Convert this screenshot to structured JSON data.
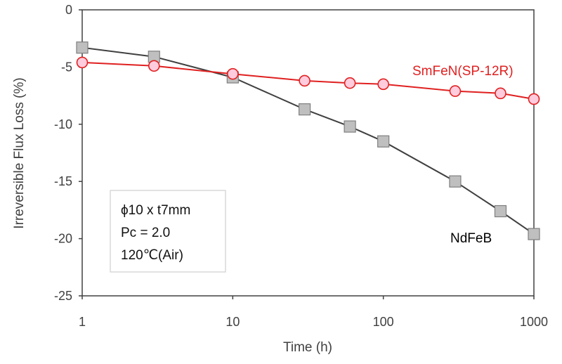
{
  "chart_data": {
    "type": "line",
    "xscale": "log",
    "xlabel": "Time (h)",
    "ylabel": "Irreversible Flux Loss (%)",
    "xlim": [
      1,
      1000
    ],
    "ylim": [
      -25,
      0
    ],
    "x_ticks": [
      "1",
      "10",
      "100",
      "1000"
    ],
    "y_ticks": [
      "0",
      "-5",
      "-10",
      "-15",
      "-20",
      "-25"
    ],
    "grid": false,
    "series": [
      {
        "name": "NdFeB",
        "label_position": "bottom-right",
        "marker": "square",
        "line_color": "#404040",
        "marker_fill": "#bfbfbf",
        "marker_stroke": "#7f7f7f",
        "text_color": "#000000",
        "x": [
          1,
          3,
          10,
          30,
          60,
          100,
          300,
          600,
          1000
        ],
        "y": [
          -3.3,
          -4.1,
          -5.9,
          -8.7,
          -10.2,
          -11.5,
          -15.0,
          -17.6,
          -19.6
        ]
      },
      {
        "name": "SmFeN(SP-12R)",
        "label_position": "top-right",
        "marker": "circle",
        "line_color": "#e02020",
        "marker_fill": "#ffccdd",
        "marker_stroke": "#e02020",
        "text_color": "#e02020",
        "x": [
          1,
          3,
          10,
          30,
          60,
          100,
          300,
          600,
          1000
        ],
        "y": [
          -4.6,
          -4.9,
          -5.6,
          -6.2,
          -6.4,
          -6.5,
          -7.1,
          -7.3,
          -7.8
        ]
      }
    ],
    "annotation": {
      "lines": [
        "ϕ10 x t7mm",
        "Pc = 2.0",
        "120℃(Air)"
      ]
    }
  }
}
